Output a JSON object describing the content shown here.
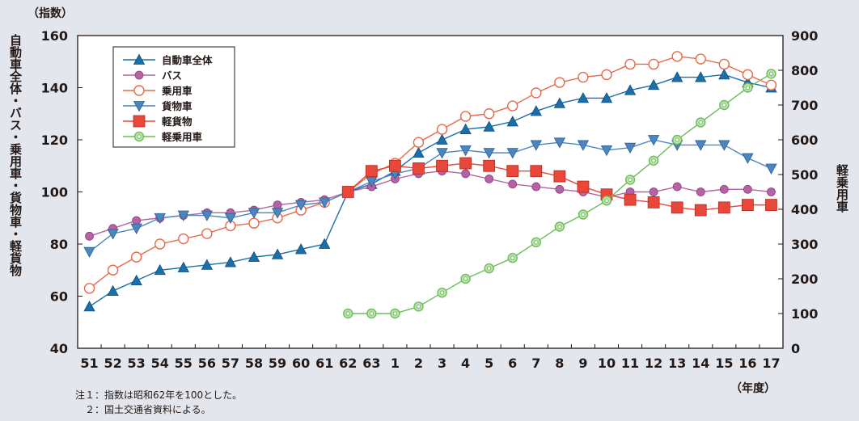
{
  "chart_data": {
    "type": "line",
    "y_unit": "（指数）",
    "x_unit": "（年度）",
    "ylabel_left": "自動車全体・バス・乗用車・貨物車・軽貨物",
    "ylabel_right": "軽乗用車",
    "ylim_left": [
      40,
      160
    ],
    "yticks_left": [
      40,
      60,
      80,
      100,
      120,
      140,
      160
    ],
    "ylim_right": [
      0,
      900
    ],
    "yticks_right": [
      0,
      100,
      200,
      300,
      400,
      500,
      600,
      700,
      800,
      900
    ],
    "grid": false,
    "legend_position": "top-left",
    "categories": [
      "51",
      "52",
      "53",
      "54",
      "55",
      "56",
      "57",
      "58",
      "59",
      "60",
      "61",
      "62",
      "63",
      "1",
      "2",
      "3",
      "4",
      "5",
      "6",
      "7",
      "8",
      "9",
      "10",
      "11",
      "12",
      "13",
      "14",
      "15",
      "16",
      "17"
    ],
    "series": [
      {
        "name": "自動車全体",
        "axis": "left",
        "color": "#1a6fa8",
        "marker": "triangle-up",
        "values": [
          56,
          62,
          66,
          70,
          71,
          72,
          73,
          75,
          76,
          78,
          80,
          100,
          103,
          108,
          115,
          120,
          124,
          125,
          127,
          131,
          134,
          136,
          136,
          139,
          141,
          144,
          144,
          145,
          142,
          140
        ]
      },
      {
        "name": "バス",
        "axis": "left",
        "color": "#b563a3",
        "marker": "circle",
        "values": [
          83,
          86,
          89,
          90,
          91,
          92,
          92,
          93,
          95,
          96,
          97,
          100,
          102,
          105,
          107,
          108,
          107,
          105,
          103,
          102,
          101,
          100,
          98,
          100,
          100,
          102,
          100,
          101,
          101,
          100
        ]
      },
      {
        "name": "乗用車",
        "axis": "left",
        "color": "#e8694a",
        "marker": "open-circle",
        "values": [
          63,
          70,
          75,
          80,
          82,
          84,
          87,
          88,
          90,
          93,
          96,
          100,
          107,
          111,
          119,
          124,
          129,
          130,
          133,
          138,
          142,
          144,
          145,
          149,
          149,
          152,
          151,
          149,
          145,
          141
        ]
      },
      {
        "name": "貨物車",
        "axis": "left",
        "color": "#4c86c0",
        "marker": "triangle-down",
        "values": [
          77,
          84,
          86,
          90,
          91,
          91,
          90,
          92,
          92,
          95,
          96,
          100,
          104,
          107,
          109,
          115,
          116,
          115,
          115,
          118,
          119,
          118,
          116,
          117,
          120,
          118,
          118,
          118,
          113,
          109
        ]
      },
      {
        "name": "軽貨物",
        "axis": "left",
        "color": "#e8473a",
        "marker": "square",
        "values": [
          null,
          null,
          null,
          null,
          null,
          null,
          null,
          null,
          null,
          null,
          null,
          100,
          108,
          110,
          109,
          110,
          111,
          110,
          108,
          108,
          106,
          102,
          99,
          97,
          96,
          94,
          93,
          94,
          95,
          95
        ]
      },
      {
        "name": "軽乗用車",
        "axis": "right",
        "color": "#6dbd5a",
        "marker": "open-circle-green",
        "values": [
          null,
          null,
          null,
          null,
          null,
          null,
          null,
          null,
          null,
          null,
          null,
          100,
          100,
          100,
          120,
          160,
          200,
          230,
          260,
          305,
          350,
          385,
          425,
          485,
          540,
          600,
          650,
          700,
          750,
          790
        ]
      }
    ]
  },
  "notes": {
    "line1": "注１：指数は昭和62年を100とした。",
    "line2": "　２：国土交通省資料による。"
  }
}
